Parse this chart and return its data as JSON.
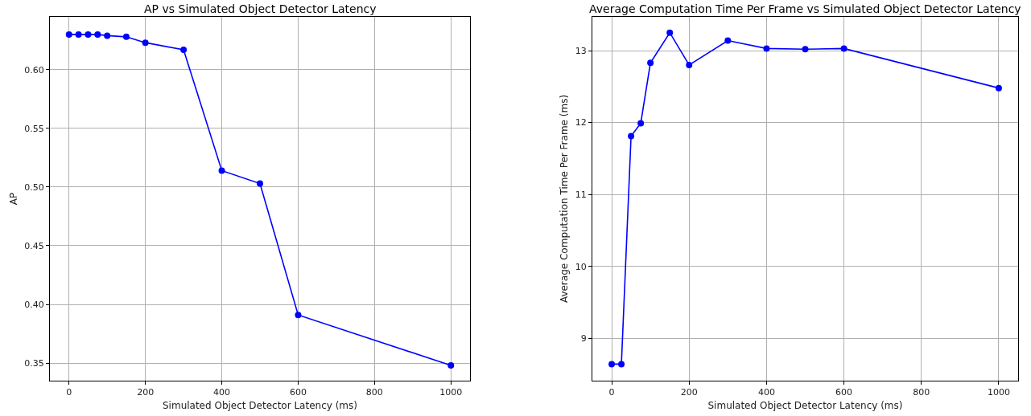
{
  "chart_data": [
    {
      "type": "line",
      "title": "AP vs Simulated Object Detector Latency",
      "xlabel": "Simulated Object Detector Latency (ms)",
      "ylabel": "AP",
      "x": [
        0,
        25,
        50,
        75,
        100,
        150,
        200,
        300,
        400,
        500,
        600,
        1000
      ],
      "series": [
        {
          "color": "#0000ff",
          "values": [
            0.63,
            0.63,
            0.63,
            0.63,
            0.629,
            0.628,
            0.623,
            0.617,
            0.514,
            0.503,
            0.391,
            0.348
          ]
        }
      ],
      "xlim": [
        -50,
        1050
      ],
      "xticks": [
        0,
        200,
        400,
        600,
        800,
        1000
      ],
      "ylim": [
        0.335,
        0.645
      ],
      "yticks": [
        {
          "value": 0.35,
          "label": "0.35"
        },
        {
          "value": 0.4,
          "label": "0.40"
        },
        {
          "value": 0.45,
          "label": "0.45"
        },
        {
          "value": 0.5,
          "label": "0.50"
        },
        {
          "value": 0.55,
          "label": "0.55"
        },
        {
          "value": 0.6,
          "label": "0.60"
        }
      ],
      "grid": true,
      "marker": "circle",
      "line_style": "solid"
    },
    {
      "type": "line",
      "title": "Average Computation Time Per Frame vs Simulated Object Detector Latency",
      "xlabel": "Simulated Object Detector Latency (ms)",
      "ylabel": "Average Computation Time Per Frame (ms)",
      "x": [
        0,
        25,
        50,
        75,
        100,
        150,
        200,
        300,
        400,
        500,
        600,
        1000
      ],
      "series": [
        {
          "color": "#0000ff",
          "values": [
            8.64,
            8.64,
            11.81,
            11.99,
            12.83,
            13.25,
            12.8,
            13.14,
            13.03,
            13.02,
            13.03,
            12.48
          ]
        }
      ],
      "xlim": [
        -50,
        1050
      ],
      "xticks": [
        0,
        200,
        400,
        600,
        800,
        1000
      ],
      "ylim": [
        8.41,
        13.47
      ],
      "yticks": [
        9,
        10,
        11,
        12,
        13
      ],
      "grid": true,
      "marker": "circle",
      "line_style": "solid"
    }
  ]
}
